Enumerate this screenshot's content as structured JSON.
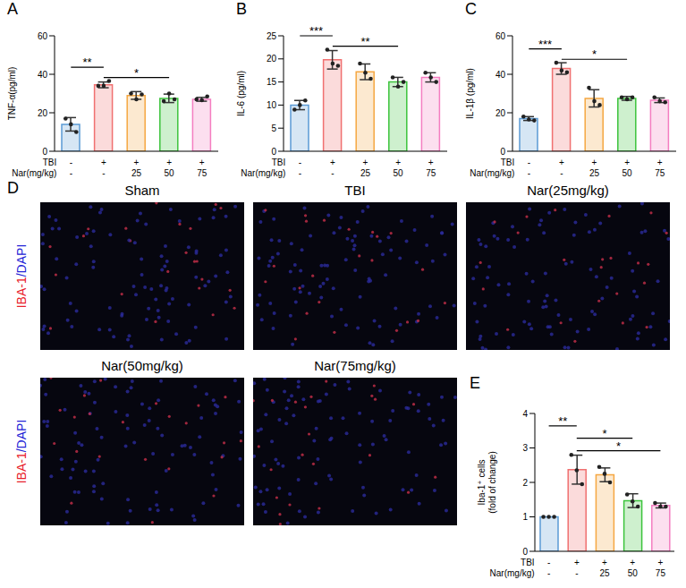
{
  "chart_data": [
    {
      "panel": "A",
      "type": "bar",
      "y_label": "TNF-α(pg/ml)",
      "ylim": [
        0,
        60
      ],
      "yticks": [
        0,
        20,
        40,
        60
      ],
      "categories": [
        null,
        null,
        null,
        null,
        null
      ],
      "x_table": [
        {
          "label": "TBI",
          "values": [
            "-",
            "+",
            "+",
            "+",
            "+"
          ]
        },
        {
          "label": "Nar(mg/kg)",
          "values": [
            "-",
            "-",
            "25",
            "50",
            "75"
          ]
        }
      ],
      "values": [
        14,
        34.5,
        29,
        27.5,
        27
      ],
      "errors": [
        3.5,
        1.5,
        2,
        2.2,
        1
      ],
      "points": [
        [
          17,
          14,
          10
        ],
        [
          34,
          34,
          36.5
        ],
        [
          30,
          27,
          29.5
        ],
        [
          26,
          30,
          27
        ],
        [
          27,
          26.5,
          28.5
        ]
      ],
      "colors": [
        "#5b9bd5",
        "#f07070",
        "#f5a742",
        "#3cc43c",
        "#f47ec1"
      ],
      "significance": [
        {
          "from": 0,
          "to": 1,
          "label": "**"
        },
        {
          "from": 1,
          "to": 3,
          "label": "*"
        }
      ]
    },
    {
      "panel": "B",
      "type": "bar",
      "y_label": "IL-6 (pg/ml)",
      "ylim": [
        0,
        25
      ],
      "yticks": [
        0,
        5,
        10,
        15,
        20,
        25
      ],
      "categories": [
        null,
        null,
        null,
        null,
        null
      ],
      "x_table": [
        {
          "label": "TBI",
          "values": [
            "-",
            "+",
            "+",
            "+",
            "+"
          ]
        },
        {
          "label": "Nar(mg/kg)",
          "values": [
            "-",
            "-",
            "25",
            "50",
            "75"
          ]
        }
      ],
      "values": [
        10,
        19.8,
        17.2,
        15,
        16
      ],
      "errors": [
        1,
        2,
        1.7,
        1,
        1
      ],
      "points": [
        [
          9,
          10,
          11
        ],
        [
          22,
          19,
          18.5
        ],
        [
          19,
          17,
          15.7
        ],
        [
          16,
          14,
          15
        ],
        [
          17,
          16,
          15
        ]
      ],
      "colors": [
        "#5b9bd5",
        "#f07070",
        "#f5a742",
        "#3cc43c",
        "#f47ec1"
      ],
      "significance": [
        {
          "from": 0,
          "to": 1,
          "label": "***"
        },
        {
          "from": 1,
          "to": 3,
          "label": "**"
        }
      ]
    },
    {
      "panel": "C",
      "type": "bar",
      "y_label": "IL-1β (pg/ml)",
      "ylim": [
        0,
        60
      ],
      "yticks": [
        0,
        20,
        40,
        60
      ],
      "categories": [
        null,
        null,
        null,
        null,
        null
      ],
      "x_table": [
        {
          "label": "TBI",
          "values": [
            "-",
            "+",
            "+",
            "+",
            "+"
          ]
        },
        {
          "label": "Nar(mg/kg)",
          "values": [
            "-",
            "-",
            "25",
            "50",
            "75"
          ]
        }
      ],
      "values": [
        17,
        43,
        27.5,
        27.5,
        26.5
      ],
      "errors": [
        1,
        3,
        4.5,
        1,
        1.2
      ],
      "points": [
        [
          18,
          16.5,
          16
        ],
        [
          46,
          42,
          41
        ],
        [
          33,
          26,
          24
        ],
        [
          28,
          27,
          28
        ],
        [
          28,
          26,
          25.5
        ]
      ],
      "colors": [
        "#5b9bd5",
        "#f07070",
        "#f5a742",
        "#3cc43c",
        "#f47ec1"
      ],
      "significance": [
        {
          "from": 0,
          "to": 1,
          "label": "***"
        },
        {
          "from": 1,
          "to": 3,
          "label": "*"
        }
      ]
    },
    {
      "panel": "E",
      "type": "bar",
      "y_label": [
        "Iba-1⁺ cells",
        "(fold of change)"
      ],
      "ylim": [
        0,
        4
      ],
      "yticks": [
        0,
        1,
        2,
        3,
        4
      ],
      "categories": [
        null,
        null,
        null,
        null,
        null
      ],
      "x_table": [
        {
          "label": "TBI",
          "values": [
            "-",
            "+",
            "+",
            "+",
            "+"
          ]
        },
        {
          "label": "Nar(mg/kg)",
          "values": [
            "-",
            "-",
            "25",
            "50",
            "75"
          ]
        }
      ],
      "values": [
        1,
        2.37,
        2.22,
        1.47,
        1.33
      ],
      "errors": [
        0,
        0.42,
        0.2,
        0.2,
        0.07
      ],
      "points": [
        [
          1,
          1,
          1
        ],
        [
          2.8,
          2.35,
          1.95
        ],
        [
          2.45,
          2.25,
          2.0
        ],
        [
          1.65,
          1.45,
          1.3
        ],
        [
          1.4,
          1.3,
          1.3
        ]
      ],
      "colors": [
        "#5b9bd5",
        "#f07070",
        "#f5a742",
        "#3cc43c",
        "#f47ec1"
      ],
      "significance": [
        {
          "from": 0,
          "to": 1,
          "label": "**"
        },
        {
          "from": 1,
          "to": 3,
          "label": "*"
        },
        {
          "from": 1,
          "to": 4,
          "label": "*"
        }
      ]
    }
  ],
  "panel_d": {
    "panel": "D",
    "stain": [
      {
        "text": "IBA-1",
        "color": "#e8202a"
      },
      {
        "text": "/DAPI",
        "color": "#2323d6"
      }
    ],
    "images": [
      "Sham",
      "TBI",
      "Nar(25mg/kg)",
      "Nar(50mg/kg)",
      "Nar(75mg/kg)"
    ]
  }
}
